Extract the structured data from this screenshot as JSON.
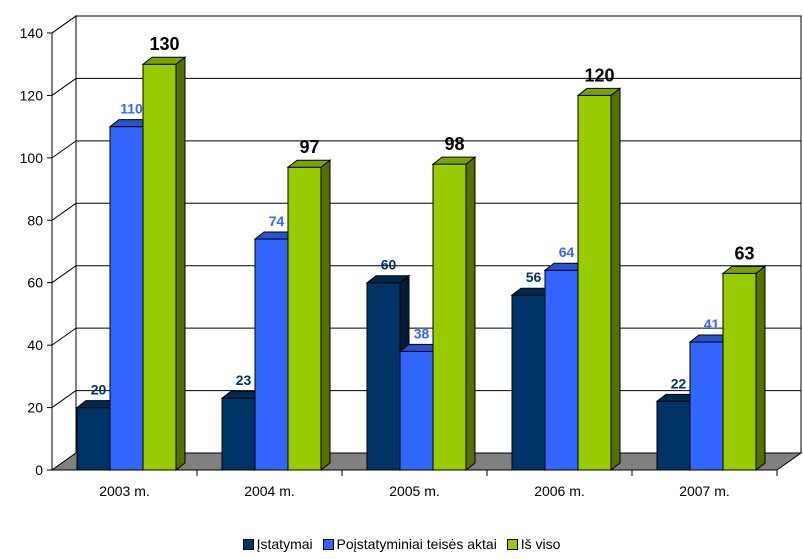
{
  "chart_data": {
    "type": "bar",
    "categories": [
      "2003 m.",
      "2004 m.",
      "2005 m.",
      "2006 m.",
      "2007 m."
    ],
    "series": [
      {
        "name": "Įstatymai",
        "values": [
          20,
          23,
          60,
          56,
          22
        ],
        "color": "#003366"
      },
      {
        "name": "Poįstatyminiai teisės aktai",
        "values": [
          110,
          74,
          38,
          64,
          41
        ],
        "color": "#3366FF"
      },
      {
        "name": "Iš viso",
        "values": [
          130,
          97,
          98,
          120,
          63
        ],
        "color": "#99CC00"
      }
    ],
    "ylim": [
      0,
      140
    ],
    "yticks": [
      "0",
      "20",
      "40",
      "60",
      "80",
      "100",
      "120",
      "140"
    ],
    "grid": true,
    "legend_position": "bottom",
    "label_colors": [
      "#003366",
      "#3366FF",
      "#000000"
    ]
  }
}
